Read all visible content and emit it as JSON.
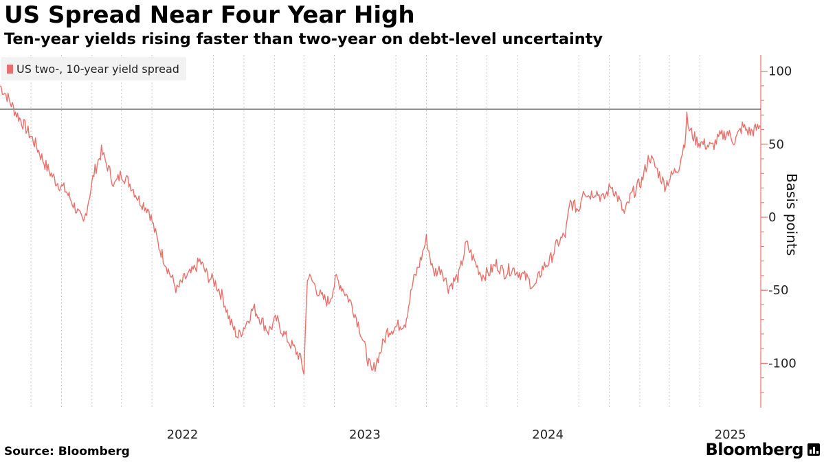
{
  "header": {
    "title": "US Spread Near Four Year High",
    "subtitle": "Ten-year yields rising faster than two-year on debt-level uncertainty"
  },
  "footer": {
    "source": "Source: Bloomberg",
    "brand": "Bloomberg"
  },
  "colors": {
    "series": "#e8706b",
    "axis": "#e8706b",
    "reference_line": "#000000",
    "grid": "#c8c8c8"
  },
  "chart_data": {
    "type": "line",
    "title": "US Spread Near Four Year High",
    "subtitle": "Ten-year yields rising faster than two-year on debt-level uncertainty",
    "ylabel": "Basis points",
    "xlabel": "",
    "ylim": [
      -130,
      110
    ],
    "xlim": [
      "2021-07-01",
      "2025-08-31"
    ],
    "yticks": [
      100,
      50,
      0,
      -50,
      -100
    ],
    "xticks": [
      "2022",
      "2023",
      "2024",
      "2025"
    ],
    "x_tick_positions": [
      "2022-07-01",
      "2023-07-01",
      "2024-07-01",
      "2025-07-01"
    ],
    "grid": "vertical dotted",
    "legend_position": "top-left",
    "reference_line": {
      "y": 74
    },
    "series": [
      {
        "name": "US two-, 10-year yield spread",
        "points": [
          [
            "2021-07-01",
            90
          ],
          [
            "2021-07-15",
            83
          ],
          [
            "2021-08-01",
            72
          ],
          [
            "2021-08-20",
            62
          ],
          [
            "2021-09-10",
            50
          ],
          [
            "2021-10-01",
            35
          ],
          [
            "2021-10-20",
            25
          ],
          [
            "2021-11-10",
            18
          ],
          [
            "2021-12-01",
            5
          ],
          [
            "2021-12-15",
            -5
          ],
          [
            "2022-01-05",
            30
          ],
          [
            "2022-01-20",
            45
          ],
          [
            "2022-02-01",
            35
          ],
          [
            "2022-02-15",
            22
          ],
          [
            "2022-03-01",
            30
          ],
          [
            "2022-03-20",
            22
          ],
          [
            "2022-04-05",
            12
          ],
          [
            "2022-04-25",
            5
          ],
          [
            "2022-05-15",
            -20
          ],
          [
            "2022-06-05",
            -38
          ],
          [
            "2022-06-20",
            -50
          ],
          [
            "2022-07-05",
            -42
          ],
          [
            "2022-07-20",
            -38
          ],
          [
            "2022-08-05",
            -30
          ],
          [
            "2022-08-20",
            -40
          ],
          [
            "2022-09-05",
            -45
          ],
          [
            "2022-09-20",
            -55
          ],
          [
            "2022-10-05",
            -72
          ],
          [
            "2022-10-20",
            -82
          ],
          [
            "2022-11-05",
            -73
          ],
          [
            "2022-11-20",
            -62
          ],
          [
            "2022-12-05",
            -70
          ],
          [
            "2022-12-20",
            -78
          ],
          [
            "2023-01-05",
            -70
          ],
          [
            "2023-01-20",
            -80
          ],
          [
            "2023-02-05",
            -88
          ],
          [
            "2023-02-20",
            -95
          ],
          [
            "2023-03-01",
            -106
          ],
          [
            "2023-03-08",
            -40
          ],
          [
            "2023-03-20",
            -45
          ],
          [
            "2023-04-05",
            -55
          ],
          [
            "2023-04-20",
            -58
          ],
          [
            "2023-05-05",
            -42
          ],
          [
            "2023-05-20",
            -50
          ],
          [
            "2023-06-05",
            -60
          ],
          [
            "2023-06-20",
            -75
          ],
          [
            "2023-07-05",
            -95
          ],
          [
            "2023-07-15",
            -107
          ],
          [
            "2023-08-01",
            -92
          ],
          [
            "2023-08-15",
            -78
          ],
          [
            "2023-09-01",
            -75
          ],
          [
            "2023-09-20",
            -72
          ],
          [
            "2023-10-05",
            -45
          ],
          [
            "2023-10-20",
            -30
          ],
          [
            "2023-11-01",
            -15
          ],
          [
            "2023-11-15",
            -38
          ],
          [
            "2023-12-01",
            -35
          ],
          [
            "2023-12-15",
            -48
          ],
          [
            "2024-01-05",
            -40
          ],
          [
            "2024-01-20",
            -18
          ],
          [
            "2024-02-05",
            -30
          ],
          [
            "2024-02-20",
            -40
          ],
          [
            "2024-03-05",
            -38
          ],
          [
            "2024-03-20",
            -32
          ],
          [
            "2024-04-05",
            -38
          ],
          [
            "2024-04-20",
            -35
          ],
          [
            "2024-05-05",
            -38
          ],
          [
            "2024-05-20",
            -42
          ],
          [
            "2024-06-05",
            -48
          ],
          [
            "2024-06-20",
            -35
          ],
          [
            "2024-07-05",
            -30
          ],
          [
            "2024-07-20",
            -18
          ],
          [
            "2024-08-05",
            -12
          ],
          [
            "2024-08-15",
            10
          ],
          [
            "2024-09-01",
            5
          ],
          [
            "2024-09-10",
            20
          ],
          [
            "2024-09-20",
            15
          ],
          [
            "2024-10-05",
            18
          ],
          [
            "2024-10-20",
            12
          ],
          [
            "2024-11-05",
            22
          ],
          [
            "2024-11-20",
            12
          ],
          [
            "2024-12-01",
            2
          ],
          [
            "2024-12-15",
            15
          ],
          [
            "2025-01-05",
            25
          ],
          [
            "2025-01-20",
            42
          ],
          [
            "2025-02-05",
            32
          ],
          [
            "2025-02-20",
            22
          ],
          [
            "2025-03-05",
            28
          ],
          [
            "2025-03-20",
            35
          ],
          [
            "2025-04-01",
            52
          ],
          [
            "2025-04-05",
            68
          ],
          [
            "2025-04-10",
            60
          ],
          [
            "2025-04-25",
            52
          ],
          [
            "2025-05-10",
            50
          ],
          [
            "2025-05-25",
            48
          ],
          [
            "2025-06-10",
            55
          ],
          [
            "2025-06-25",
            58
          ],
          [
            "2025-07-10",
            52
          ],
          [
            "2025-07-25",
            62
          ],
          [
            "2025-08-10",
            58
          ],
          [
            "2025-08-20",
            60
          ],
          [
            "2025-08-31",
            62
          ]
        ]
      }
    ]
  },
  "legend": {
    "label": "US two-, 10-year yield spread"
  }
}
